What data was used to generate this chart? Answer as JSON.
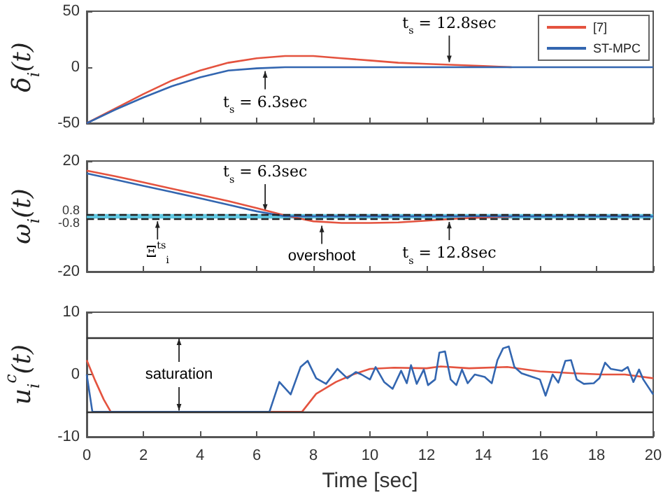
{
  "chart_data": [
    {
      "type": "line",
      "ylabel": "δ$_{i}$(t)",
      "xlim": [
        0,
        20
      ],
      "xticks": [
        0,
        2,
        4,
        6,
        8,
        10,
        12,
        14,
        16,
        18,
        20
      ],
      "ylim": [
        -50,
        50
      ],
      "yticks": [
        -50,
        0,
        50
      ],
      "tick_labels": "y",
      "legend": "top right",
      "x": [
        0,
        1,
        2,
        3,
        4,
        5,
        6,
        7,
        8,
        9,
        10,
        11,
        12,
        13,
        14,
        15,
        16,
        17,
        18,
        19,
        20
      ],
      "series": [
        {
          "name": "[7]",
          "color": "#e4533f",
          "values": [
            -50,
            -37,
            -24,
            -12,
            -3,
            4,
            8,
            10,
            10,
            8,
            6,
            4,
            3,
            2,
            1,
            0,
            null,
            null,
            null,
            null,
            null
          ]
        },
        {
          "name": "ST-MPC",
          "color": "#3366b0",
          "values": [
            -50,
            -38,
            -27,
            -17,
            -9,
            -3,
            -1,
            0,
            0,
            0,
            0,
            0,
            0,
            0,
            0,
            0,
            0,
            0,
            0,
            0,
            0
          ]
        }
      ],
      "annotations": [
        {
          "text": "t$_{s}$ = 12.8sec",
          "x": 12.8,
          "y": 2
        },
        {
          "text": "t$_{s}$ = 6.3sec",
          "x": 6.3,
          "y": -1
        }
      ]
    },
    {
      "type": "line",
      "ylabel": "ω$_{i}$(t)",
      "xlim": [
        0,
        20
      ],
      "xticks": [
        0,
        2,
        4,
        6,
        8,
        10,
        12,
        14,
        16,
        18,
        20
      ],
      "ylim": [
        -20,
        20
      ],
      "yticks": [
        -20,
        -0.8,
        0.8,
        20
      ],
      "tick_labels": "y",
      "x": [
        0,
        1,
        2,
        3,
        4,
        5,
        6,
        7,
        8,
        9,
        10,
        11,
        12,
        13,
        14,
        15,
        16,
        17,
        18,
        19,
        20
      ],
      "series": [
        {
          "color": "#e4533f",
          "values": [
            16.5,
            14.5,
            12.3,
            10,
            7.8,
            5.5,
            3,
            0.3,
            -1.8,
            -2.4,
            -2.4,
            -2.2,
            -1.6,
            -0.9,
            -0.4,
            -0.1,
            null,
            null,
            null,
            null,
            null
          ]
        },
        {
          "color": "#3366b0",
          "values": [
            15.5,
            13.3,
            11,
            8.8,
            6.5,
            4.2,
            1.8,
            0,
            0,
            0,
            0,
            0,
            0,
            0,
            0,
            0,
            0,
            0,
            0,
            0,
            0
          ]
        }
      ],
      "bands": [
        {
          "axis": "y",
          "from": -0.8,
          "to": 0.8,
          "color": "#4fc3e0"
        }
      ],
      "ref_lines": [
        {
          "axis": "y",
          "value": 0.8,
          "color": "#222222",
          "line_style": "dashed"
        },
        {
          "axis": "y",
          "value": -0.8,
          "color": "#222222",
          "line_style": "dashed"
        }
      ],
      "annotations": [
        {
          "text": "t$_{s}$ = 6.3sec",
          "x": 6.3,
          "y": 1
        },
        {
          "text": "overshoot",
          "x": 8.3,
          "y": -2.4
        },
        {
          "text": "t$_{s}$ = 12.8sec",
          "x": 12.8,
          "y": -1
        },
        {
          "text": "Ξ$^{ts}$$_{i}$",
          "x": 2.5,
          "y": -0.8
        }
      ]
    },
    {
      "type": "line",
      "ylabel": "u$_{i}$$^{c}$(t)",
      "xlabel": "Time [sec]",
      "xlim": [
        0,
        20
      ],
      "xticks": [
        0,
        2,
        4,
        6,
        8,
        10,
        12,
        14,
        16,
        18,
        20
      ],
      "ylim": [
        -10,
        10
      ],
      "yticks": [
        -10,
        0,
        10
      ],
      "series": [
        {
          "color": "#e4533f",
          "x": [
            0,
            0.3,
            0.6,
            0.85,
            7.6,
            8.1,
            8.8,
            9.4,
            10,
            10.85,
            12,
            12.5,
            13.5,
            14.85,
            16,
            17.2,
            18.2,
            19,
            20
          ],
          "values": [
            2.3,
            -1,
            -4,
            -6,
            -6,
            -3.1,
            -1.2,
            0,
            0.9,
            1.1,
            1,
            1.3,
            1,
            1.2,
            0.5,
            0.2,
            0,
            0,
            -0.6
          ]
        },
        {
          "color": "#3366b0",
          "x": [
            0,
            0.2,
            6.45,
            6.8,
            7.2,
            7.55,
            7.8,
            8.1,
            8.45,
            8.85,
            9.2,
            9.5,
            9.7,
            10,
            10.2,
            10.5,
            10.8,
            11.1,
            11.3,
            11.45,
            11.65,
            11.9,
            12.05,
            12.3,
            12.45,
            12.65,
            12.85,
            13.05,
            13.25,
            13.45,
            13.7,
            14.05,
            14.3,
            14.5,
            14.7,
            14.9,
            15.1,
            15.35,
            16,
            16.2,
            16.45,
            16.65,
            16.9,
            17.1,
            17.3,
            17.55,
            17.9,
            18.1,
            18.3,
            18.5,
            18.9,
            19.1,
            19.3,
            19.5,
            19.65,
            20
          ],
          "values": [
            0,
            -6,
            -6,
            -1.2,
            -3.2,
            1.2,
            2.2,
            -0.6,
            -1.5,
            0.9,
            -0.6,
            0.4,
            0,
            -0.8,
            1.2,
            -1.2,
            -2.3,
            0.6,
            -1.4,
            1.5,
            -1.5,
            0.8,
            -1.7,
            -0.8,
            3.5,
            3.7,
            -0.8,
            -1.7,
            0.8,
            -1.4,
            0,
            -0.4,
            -1.4,
            2.3,
            4.2,
            4.5,
            1.2,
            0.2,
            -0.8,
            -3.4,
            0,
            -1.3,
            2.2,
            2.3,
            -0.8,
            -1.5,
            -1.4,
            -0.6,
            1.9,
            0.9,
            0.6,
            1.2,
            -1.2,
            0.8,
            -0.8,
            -3.2
          ]
        }
      ],
      "ref_lines": [
        {
          "axis": "y",
          "value": 6,
          "color": "#333333"
        },
        {
          "axis": "y",
          "value": -6,
          "color": "#333333"
        }
      ],
      "annotations": [
        "saturation"
      ]
    }
  ]
}
